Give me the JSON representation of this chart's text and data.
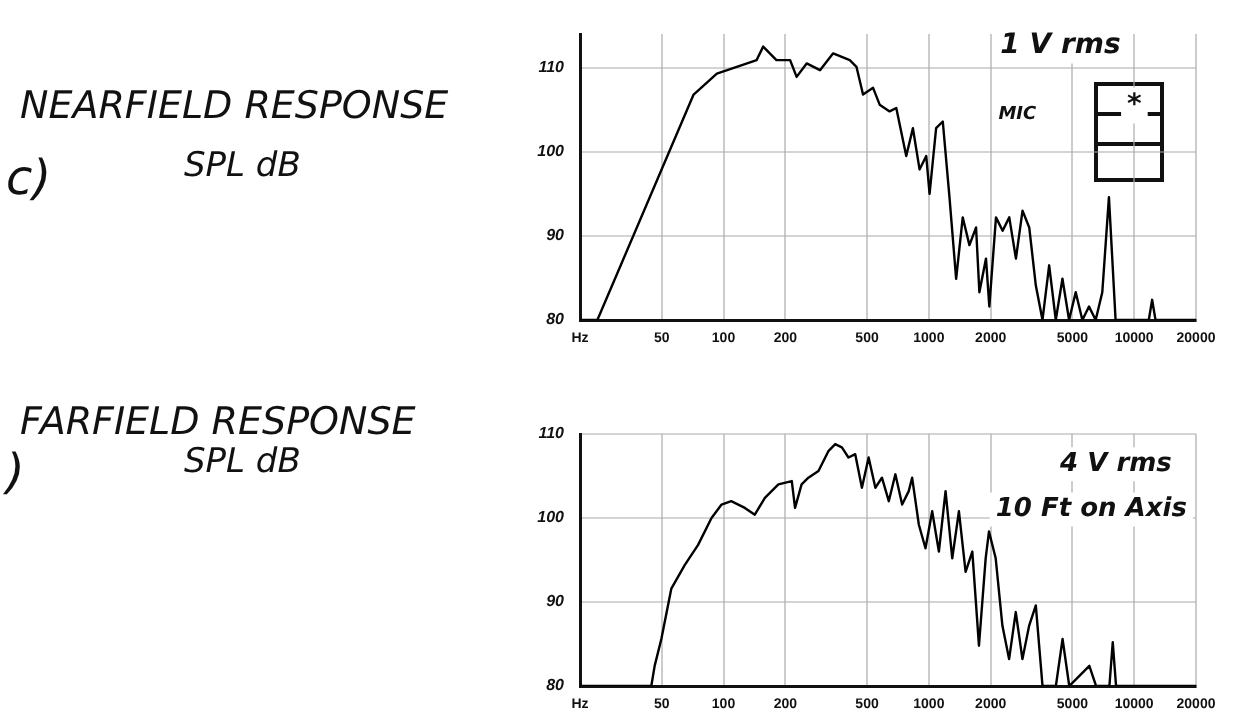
{
  "chart_data": [
    {
      "type": "line",
      "title": "NEARFIELD RESPONSE",
      "ylabel": "SPL dB",
      "annotations": [
        "c)",
        "1 V rms",
        "MIC",
        "*"
      ],
      "x": [
        20,
        24.3,
        71.5,
        92.8,
        145,
        156,
        181,
        211,
        227,
        254,
        295,
        342,
        412,
        444,
        478,
        535,
        576,
        644,
        694,
        776,
        836,
        901,
        971,
        1008,
        1085,
        1169,
        1260,
        1358,
        1462,
        1576,
        1698,
        1762,
        1898,
        1970,
        2123,
        2287,
        2464,
        2655,
        2859,
        3082,
        3319,
        3576,
        3854,
        4151,
        4473,
        4818,
        5191,
        5593,
        6025,
        6492,
        6993,
        7534,
        8118,
        11780,
        12230,
        12700,
        20000
      ],
      "series": [
        {
          "color": "#000000",
          "values": [
            80,
            80,
            106.8,
            109.3,
            110.9,
            112.5,
            110.9,
            110.9,
            108.9,
            110.5,
            109.7,
            111.7,
            110.9,
            110.1,
            106.8,
            107.6,
            105.6,
            104.8,
            105.2,
            99.5,
            102.8,
            97.9,
            99.5,
            95.0,
            102.8,
            103.6,
            94.6,
            84.9,
            92.2,
            88.9,
            91.0,
            83.3,
            87.3,
            81.6,
            92.2,
            90.6,
            92.2,
            87.3,
            93.0,
            91.0,
            84.1,
            80,
            86.5,
            80,
            84.9,
            80,
            83.3,
            80,
            81.6,
            80,
            83.3,
            94.6,
            80,
            80,
            82.4,
            80,
            80
          ]
        }
      ],
      "log": "x",
      "xlim": [
        20,
        20000
      ],
      "xticks": [
        {
          "value": 20,
          "label": "Hz"
        },
        50,
        100,
        200,
        500,
        1000,
        2000,
        5000,
        10000,
        20000
      ],
      "ylim": [
        80,
        114
      ],
      "yticks": [
        80,
        90,
        100,
        110
      ],
      "grid": true,
      "legend": false,
      "marker": "none",
      "line_style": "solid"
    },
    {
      "type": "line",
      "title": "FARFIELD RESPONSE",
      "ylabel": "SPL dB",
      "annotations": [
        ")",
        "4 V rms",
        "10 Ft on Axis"
      ],
      "x": [
        20,
        44.5,
        46.2,
        49.8,
        55.7,
        64.7,
        75.2,
        87.4,
        97.8,
        109,
        127,
        142,
        159,
        185,
        215,
        223,
        240,
        259,
        290,
        325,
        350,
        377,
        406,
        438,
        472,
        509,
        549,
        591,
        638,
        687,
        741,
        798,
        829,
        894,
        963,
        1038,
        1119,
        1206,
        1300,
        1401,
        1510,
        1628,
        1754,
        1891,
        1963,
        2116,
        2281,
        2459,
        2650,
        2856,
        3080,
        3318,
        3577,
        4156,
        4479,
        4828,
        5203,
        6048,
        6519,
        7573,
        7863,
        8161,
        20000
      ],
      "series": [
        {
          "color": "#000000",
          "values": [
            80,
            80,
            82.4,
            85.6,
            91.6,
            94.4,
            96.8,
            100,
            101.6,
            102,
            101.2,
            100.4,
            102.4,
            104,
            104.4,
            101.2,
            104,
            104.8,
            105.6,
            108,
            108.8,
            108.4,
            107.2,
            107.6,
            103.6,
            107.2,
            103.6,
            104.8,
            102,
            105.2,
            101.6,
            103.2,
            104.8,
            99.2,
            96.4,
            100.8,
            96,
            103.2,
            95.2,
            100.8,
            93.6,
            96,
            84.8,
            95.2,
            98.4,
            95.2,
            87.2,
            83.2,
            88.8,
            83.2,
            87.2,
            89.6,
            80,
            80,
            85.6,
            80,
            80.8,
            82.4,
            80,
            80,
            85.2,
            80,
            80
          ]
        }
      ],
      "log": "x",
      "xlim": [
        20,
        20000
      ],
      "xticks": [
        {
          "value": 20,
          "label": "Hz"
        },
        50,
        100,
        200,
        500,
        1000,
        2000,
        5000,
        10000,
        20000
      ],
      "ylim": [
        80,
        110
      ],
      "yticks": [
        80,
        90,
        100,
        110
      ],
      "grid": true,
      "legend": false,
      "marker": "none",
      "line_style": "solid"
    }
  ]
}
